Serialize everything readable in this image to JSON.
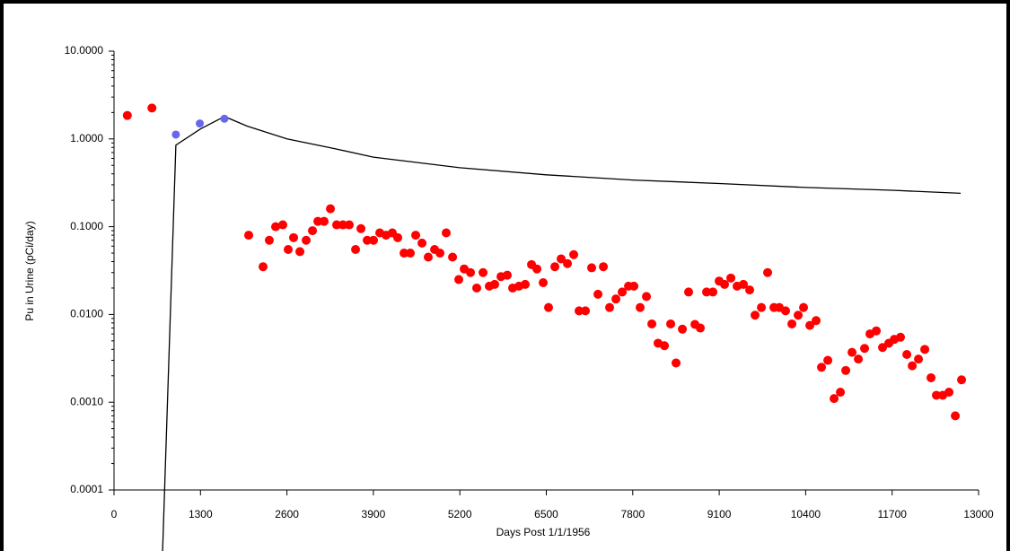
{
  "chart_data": {
    "type": "scatter",
    "x_label": "Days Post 1/1/1956",
    "y_label": "Pu in Urine (pCi/day)",
    "log_y": true,
    "xlim": [
      0,
      13000
    ],
    "xticks": [
      0,
      1300,
      2600,
      3900,
      5200,
      6500,
      7800,
      9100,
      10400,
      11700,
      13000
    ],
    "ylim": [
      0.0001,
      10
    ],
    "yticks": [
      {
        "value": 0.0001,
        "label": "0.0001"
      },
      {
        "value": 0.001,
        "label": "0.0010"
      },
      {
        "value": 0.01,
        "label": "0.0100"
      },
      {
        "value": 0.1,
        "label": "0.1000"
      },
      {
        "value": 1,
        "label": "1.0000"
      },
      {
        "value": 10,
        "label": "10.0000"
      }
    ],
    "series": [
      {
        "type": "line",
        "color": "#000000",
        "x": [
          730,
          930,
          1300,
          1660,
          2000,
          2600,
          3300,
          3900,
          5200,
          6500,
          7800,
          9100,
          10400,
          11700,
          12730
        ],
        "values": [
          2e-05,
          0.85,
          1.3,
          1.8,
          1.4,
          1.0,
          0.78,
          0.62,
          0.47,
          0.39,
          0.34,
          0.31,
          0.28,
          0.26,
          0.24
        ]
      },
      {
        "type": "scatter",
        "color": "#ff0000",
        "x": [
          200,
          570
        ],
        "values": [
          1.85,
          2.25
        ]
      },
      {
        "type": "scatter",
        "color": "#6666ee",
        "x": [
          930,
          1290,
          1660
        ],
        "values": [
          1.12,
          1.5,
          1.7
        ]
      },
      {
        "type": "scatter",
        "color": "#ff0000",
        "x": [
          2025,
          2241,
          2335,
          2430,
          2538,
          2619,
          2700,
          2795,
          2889,
          2984,
          3065,
          3159,
          3254,
          3348,
          3443,
          3537,
          3632,
          3713,
          3807,
          3902,
          3996,
          4091,
          4185,
          4266,
          4361,
          4455,
          4536,
          4631,
          4725,
          4820,
          4901,
          4995,
          5090,
          5184,
          5265,
          5360,
          5454,
          5549,
          5643,
          5724,
          5819,
          5913,
          5994,
          6089,
          6183,
          6278,
          6359,
          6453,
          6534,
          6629,
          6723,
          6818,
          6912,
          6993,
          7088,
          7182,
          7277,
          7358,
          7452,
          7547,
          7641,
          7736,
          7817,
          7911,
          8006,
          8087,
          8181,
          8276,
          8370,
          8451,
          8546,
          8640,
          8735,
          8816,
          8910,
          9005,
          9099,
          9180,
          9275,
          9369,
          9464,
          9558,
          9639,
          9734,
          9828,
          9923,
          10004,
          10098,
          10193,
          10287,
          10368,
          10463,
          10557,
          10638,
          10733,
          10827,
          10922,
          11003,
          11097,
          11192,
          11286,
          11367,
          11462,
          11556,
          11651,
          11732,
          11826,
          11921,
          12002,
          12096,
          12191,
          12285,
          12366,
          12461,
          12555,
          12650,
          12744
        ],
        "values": [
          0.08,
          0.035,
          0.07,
          0.1,
          0.105,
          0.055,
          0.075,
          0.052,
          0.07,
          0.09,
          0.115,
          0.115,
          0.16,
          0.105,
          0.105,
          0.105,
          0.055,
          0.095,
          0.07,
          0.07,
          0.085,
          0.08,
          0.085,
          0.075,
          0.05,
          0.05,
          0.08,
          0.065,
          0.045,
          0.055,
          0.05,
          0.085,
          0.045,
          0.025,
          0.033,
          0.03,
          0.02,
          0.03,
          0.021,
          0.022,
          0.027,
          0.028,
          0.02,
          0.021,
          0.022,
          0.037,
          0.033,
          0.023,
          0.012,
          0.035,
          0.043,
          0.038,
          0.048,
          0.011,
          0.011,
          0.034,
          0.017,
          0.035,
          0.012,
          0.015,
          0.018,
          0.021,
          0.021,
          0.012,
          0.016,
          0.0078,
          0.0047,
          0.0044,
          0.0078,
          0.0028,
          0.0068,
          0.018,
          0.0077,
          0.007,
          0.018,
          0.018,
          0.024,
          0.022,
          0.026,
          0.021,
          0.022,
          0.019,
          0.0098,
          0.012,
          0.03,
          0.012,
          0.012,
          0.011,
          0.0078,
          0.0098,
          0.012,
          0.0075,
          0.0085,
          0.0025,
          0.003,
          0.0011,
          0.0013,
          0.0023,
          0.0037,
          0.0031,
          0.0041,
          0.006,
          0.0065,
          0.0042,
          0.0047,
          0.0052,
          0.0055,
          0.0035,
          0.0026,
          0.0031,
          0.004,
          0.0019,
          0.0012,
          0.0012,
          0.0013,
          0.0007,
          0.0018
        ]
      }
    ]
  }
}
